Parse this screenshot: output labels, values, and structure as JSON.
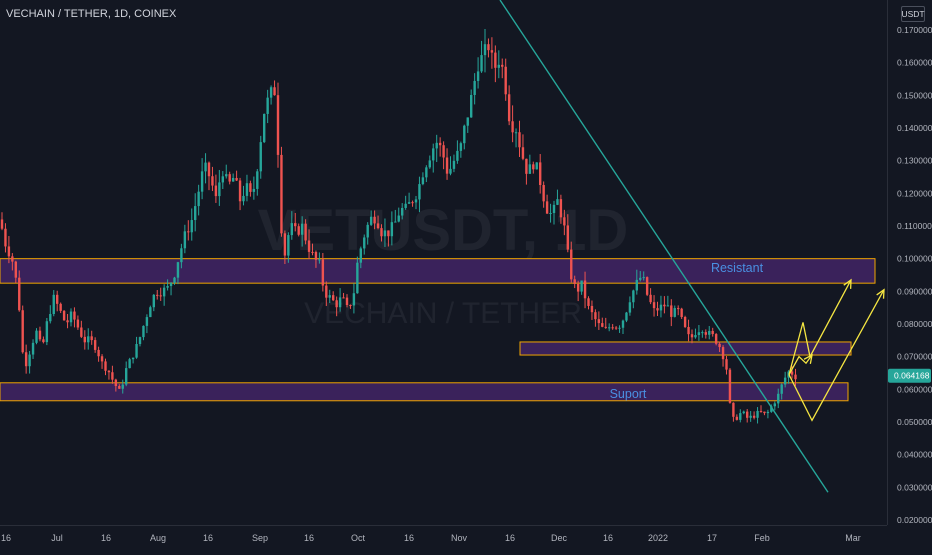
{
  "header": {
    "symbol_title": "VECHAIN / TETHER, 1D, COINEX",
    "currency": "USDT"
  },
  "watermark": {
    "ticker": "VETUSDT, 1D",
    "pair": "VECHAIN / TETHER"
  },
  "colors": {
    "background": "#131722",
    "up_candle": "#26a69a",
    "down_candle": "#ef5350",
    "zone_fill": "#5b2c8a",
    "zone_border": "#f0a500",
    "trendline": "#26a69a",
    "projection": "#f5e642",
    "zone_label": "#4a90e2",
    "current_price_tag": "#26a69a"
  },
  "chart_data": {
    "type": "candlestick",
    "symbol": "VETUSDT",
    "interval": "1D",
    "exchange": "COINEX",
    "y_scale": "linear",
    "ylim": [
      0.02,
      0.175
    ],
    "y_ticks": [
      "0.170000",
      "0.160000",
      "0.150000",
      "0.140000",
      "0.130000",
      "0.120000",
      "0.110000",
      "0.100000",
      "0.090000",
      "0.080000",
      "0.070000",
      "0.060000",
      "0.050000",
      "0.040000",
      "0.030000",
      "0.020000"
    ],
    "x_ticks": [
      "16",
      "Jul",
      "16",
      "Aug",
      "16",
      "Sep",
      "16",
      "Oct",
      "16",
      "Nov",
      "16",
      "Dec",
      "16",
      "2022",
      "17",
      "Feb",
      "Mar"
    ],
    "current_price": "0.064168",
    "price_path": [
      [
        0,
        0.112
      ],
      [
        5,
        0.105
      ],
      [
        12,
        0.1
      ],
      [
        18,
        0.09
      ],
      [
        24,
        0.066
      ],
      [
        30,
        0.072
      ],
      [
        36,
        0.078
      ],
      [
        42,
        0.072
      ],
      [
        48,
        0.082
      ],
      [
        54,
        0.088
      ],
      [
        60,
        0.084
      ],
      [
        66,
        0.08
      ],
      [
        72,
        0.083
      ],
      [
        78,
        0.079
      ],
      [
        84,
        0.075
      ],
      [
        90,
        0.075
      ],
      [
        96,
        0.073
      ],
      [
        102,
        0.068
      ],
      [
        108,
        0.066
      ],
      [
        114,
        0.062
      ],
      [
        120,
        0.059
      ],
      [
        126,
        0.066
      ],
      [
        132,
        0.07
      ],
      [
        138,
        0.074
      ],
      [
        144,
        0.08
      ],
      [
        150,
        0.086
      ],
      [
        156,
        0.09
      ],
      [
        162,
        0.09
      ],
      [
        168,
        0.091
      ],
      [
        174,
        0.095
      ],
      [
        180,
        0.102
      ],
      [
        186,
        0.108
      ],
      [
        192,
        0.112
      ],
      [
        198,
        0.12
      ],
      [
        204,
        0.128
      ],
      [
        210,
        0.125
      ],
      [
        216,
        0.118
      ],
      [
        222,
        0.128
      ],
      [
        228,
        0.122
      ],
      [
        234,
        0.125
      ],
      [
        240,
        0.118
      ],
      [
        246,
        0.122
      ],
      [
        252,
        0.118
      ],
      [
        258,
        0.13
      ],
      [
        264,
        0.145
      ],
      [
        270,
        0.15
      ],
      [
        276,
        0.152
      ],
      [
        280,
        0.115
      ],
      [
        284,
        0.1
      ],
      [
        290,
        0.11
      ],
      [
        296,
        0.108
      ],
      [
        302,
        0.11
      ],
      [
        308,
        0.104
      ],
      [
        314,
        0.1
      ],
      [
        320,
        0.098
      ],
      [
        324,
        0.09
      ],
      [
        330,
        0.088
      ],
      [
        336,
        0.086
      ],
      [
        342,
        0.088
      ],
      [
        348,
        0.084
      ],
      [
        354,
        0.09
      ],
      [
        358,
        0.1
      ],
      [
        364,
        0.107
      ],
      [
        370,
        0.112
      ],
      [
        376,
        0.113
      ],
      [
        382,
        0.108
      ],
      [
        388,
        0.108
      ],
      [
        394,
        0.11
      ],
      [
        400,
        0.115
      ],
      [
        406,
        0.115
      ],
      [
        412,
        0.118
      ],
      [
        418,
        0.121
      ],
      [
        424,
        0.128
      ],
      [
        430,
        0.132
      ],
      [
        436,
        0.136
      ],
      [
        442,
        0.133
      ],
      [
        448,
        0.126
      ],
      [
        454,
        0.13
      ],
      [
        460,
        0.133
      ],
      [
        466,
        0.142
      ],
      [
        472,
        0.15
      ],
      [
        478,
        0.16
      ],
      [
        484,
        0.162
      ],
      [
        488,
        0.166
      ],
      [
        494,
        0.158
      ],
      [
        500,
        0.162
      ],
      [
        506,
        0.152
      ],
      [
        510,
        0.142
      ],
      [
        516,
        0.14
      ],
      [
        522,
        0.132
      ],
      [
        528,
        0.126
      ],
      [
        534,
        0.13
      ],
      [
        540,
        0.124
      ],
      [
        546,
        0.116
      ],
      [
        552,
        0.113
      ],
      [
        558,
        0.118
      ],
      [
        564,
        0.11
      ],
      [
        570,
        0.096
      ],
      [
        576,
        0.09
      ],
      [
        582,
        0.092
      ],
      [
        588,
        0.085
      ],
      [
        594,
        0.082
      ],
      [
        600,
        0.079
      ],
      [
        606,
        0.078
      ],
      [
        612,
        0.08
      ],
      [
        618,
        0.079
      ],
      [
        624,
        0.082
      ],
      [
        630,
        0.088
      ],
      [
        636,
        0.092
      ],
      [
        642,
        0.095
      ],
      [
        648,
        0.088
      ],
      [
        654,
        0.084
      ],
      [
        660,
        0.085
      ],
      [
        666,
        0.086
      ],
      [
        672,
        0.083
      ],
      [
        678,
        0.084
      ],
      [
        684,
        0.079
      ],
      [
        690,
        0.075
      ],
      [
        696,
        0.078
      ],
      [
        702,
        0.079
      ],
      [
        708,
        0.077
      ],
      [
        714,
        0.076
      ],
      [
        720,
        0.073
      ],
      [
        726,
        0.068
      ],
      [
        730,
        0.055
      ],
      [
        734,
        0.05
      ],
      [
        738,
        0.052
      ],
      [
        742,
        0.053
      ],
      [
        748,
        0.051
      ],
      [
        754,
        0.052
      ],
      [
        760,
        0.053
      ],
      [
        766,
        0.052
      ],
      [
        772,
        0.055
      ],
      [
        778,
        0.058
      ],
      [
        784,
        0.063
      ],
      [
        790,
        0.066
      ],
      [
        794,
        0.064
      ],
      [
        798,
        0.064
      ]
    ],
    "zones": [
      {
        "name": "Resistant",
        "y_top": 0.1,
        "y_bottom": 0.0925
      },
      {
        "name": "",
        "y_top": 0.0745,
        "y_bottom": 0.0705
      },
      {
        "name": "Suport",
        "y_top": 0.062,
        "y_bottom": 0.0565
      }
    ],
    "trendline": {
      "from_price": 0.175,
      "to_price": 0.0285
    },
    "projections": [
      {
        "type": "zigzag_up",
        "points_price": [
          0.0645,
          0.0805,
          0.0935
        ]
      },
      {
        "type": "zigzag_up",
        "points_price": [
          0.0645,
          0.0705,
          0.0685
        ]
      },
      {
        "type": "zigzag_down_up",
        "points_price": [
          0.0645,
          0.0505,
          0.0905
        ]
      }
    ]
  }
}
